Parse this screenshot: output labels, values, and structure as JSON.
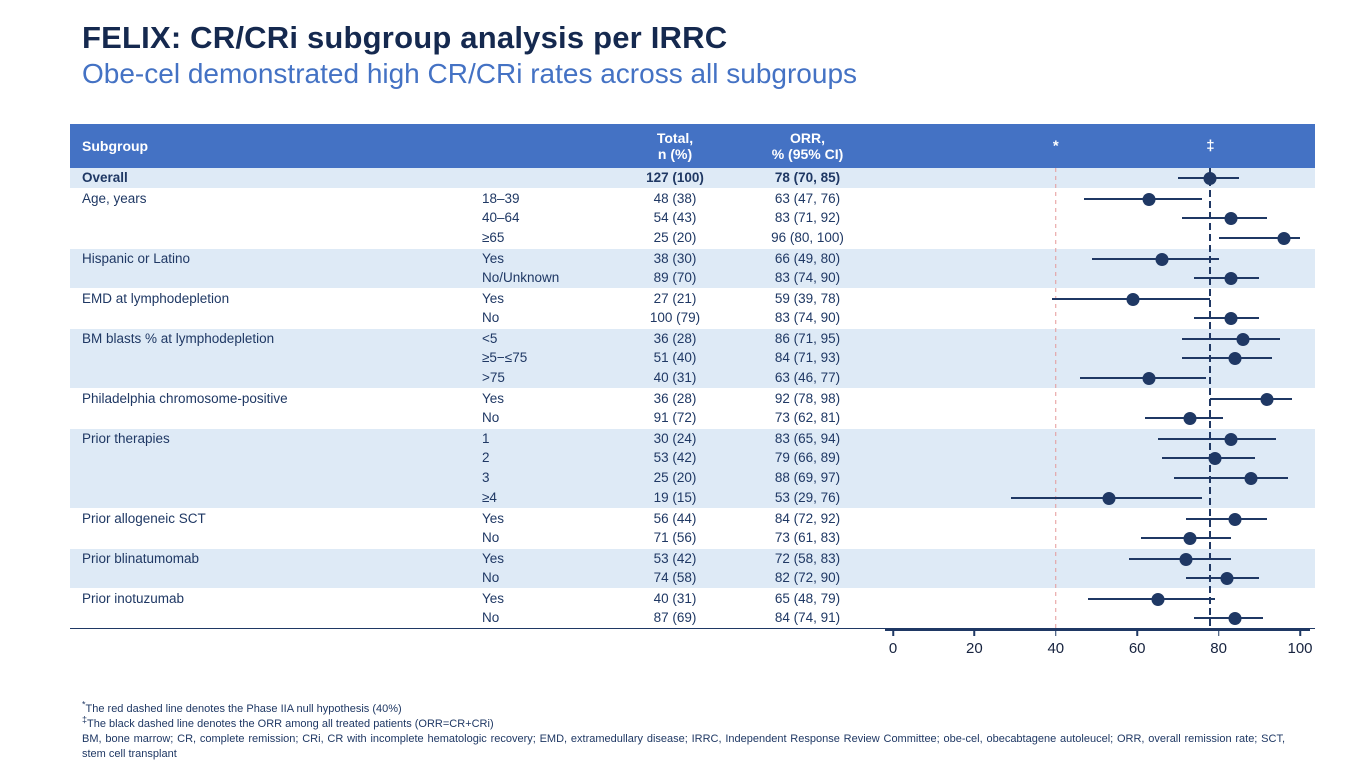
{
  "title": "FELIX: CR/CRi subgroup analysis per IRRC",
  "subtitle": "Obe-cel demonstrated high CR/CRi rates across all subgroups",
  "colors": {
    "header_bg": "#4472C4",
    "row_shade": "#DEEAF6",
    "ink": "#1F3864",
    "accent": "#4472C4",
    "marker": "#1F3864",
    "ref_red": "#E59898"
  },
  "table": {
    "headers": {
      "subgroup": "Subgroup",
      "total_line1": "Total,",
      "total_line2": "n (%)",
      "orr_line1": "ORR,",
      "orr_line2": "% (95% CI)",
      "star": "*",
      "dagger": "‡"
    }
  },
  "chart_data": {
    "type": "scatter",
    "variant": "forest-plot",
    "xlim": [
      0,
      100
    ],
    "x_ticks": [
      0,
      20,
      40,
      60,
      80,
      100
    ],
    "grid": false,
    "reference_lines": [
      {
        "value": 40,
        "style": "dashed",
        "color": "#E59898",
        "symbol": "*",
        "meaning": "Phase IIA null hypothesis (40%)"
      },
      {
        "value": 78,
        "style": "dashed",
        "color": "#1F3864",
        "symbol": "‡",
        "meaning": "ORR among all treated patients (ORR=CR+CRi)"
      }
    ],
    "groups": [
      {
        "label": "Overall",
        "bold": true,
        "rows": [
          {
            "category": "",
            "total": "127 (100)",
            "orr": "78 (70, 85)",
            "est": 78,
            "lo": 70,
            "hi": 85
          }
        ]
      },
      {
        "label": "Age, years",
        "rows": [
          {
            "category": "18–39",
            "total": "48 (38)",
            "orr": "63 (47, 76)",
            "est": 63,
            "lo": 47,
            "hi": 76
          },
          {
            "category": "40–64",
            "total": "54 (43)",
            "orr": "83 (71, 92)",
            "est": 83,
            "lo": 71,
            "hi": 92
          },
          {
            "category": "≥65",
            "total": "25 (20)",
            "orr": "96 (80, 100)",
            "est": 96,
            "lo": 80,
            "hi": 100
          }
        ]
      },
      {
        "label": "Hispanic or Latino",
        "rows": [
          {
            "category": "Yes",
            "total": "38 (30)",
            "orr": "66 (49, 80)",
            "est": 66,
            "lo": 49,
            "hi": 80
          },
          {
            "category": "No/Unknown",
            "total": "89 (70)",
            "orr": "83 (74, 90)",
            "est": 83,
            "lo": 74,
            "hi": 90
          }
        ]
      },
      {
        "label": "EMD at lymphodepletion",
        "rows": [
          {
            "category": "Yes",
            "total": "27 (21)",
            "orr": "59 (39, 78)",
            "est": 59,
            "lo": 39,
            "hi": 78
          },
          {
            "category": "No",
            "total": "100 (79)",
            "orr": "83 (74, 90)",
            "est": 83,
            "lo": 74,
            "hi": 90
          }
        ]
      },
      {
        "label": "BM blasts % at lymphodepletion",
        "rows": [
          {
            "category": "<5",
            "total": "36 (28)",
            "orr": "86 (71, 95)",
            "est": 86,
            "lo": 71,
            "hi": 95
          },
          {
            "category": "≥5−≤75",
            "total": "51 (40)",
            "orr": "84 (71, 93)",
            "est": 84,
            "lo": 71,
            "hi": 93
          },
          {
            "category": ">75",
            "total": "40 (31)",
            "orr": "63 (46, 77)",
            "est": 63,
            "lo": 46,
            "hi": 77
          }
        ]
      },
      {
        "label": "Philadelphia chromosome-positive",
        "rows": [
          {
            "category": "Yes",
            "total": "36 (28)",
            "orr": "92 (78, 98)",
            "est": 92,
            "lo": 78,
            "hi": 98
          },
          {
            "category": "No",
            "total": "91 (72)",
            "orr": "73 (62, 81)",
            "est": 73,
            "lo": 62,
            "hi": 81
          }
        ]
      },
      {
        "label": "Prior therapies",
        "rows": [
          {
            "category": "1",
            "total": "30 (24)",
            "orr": "83 (65, 94)",
            "est": 83,
            "lo": 65,
            "hi": 94
          },
          {
            "category": "2",
            "total": "53 (42)",
            "orr": "79 (66, 89)",
            "est": 79,
            "lo": 66,
            "hi": 89
          },
          {
            "category": "3",
            "total": "25 (20)",
            "orr": "88 (69, 97)",
            "est": 88,
            "lo": 69,
            "hi": 97
          },
          {
            "category": "≥4",
            "total": "19 (15)",
            "orr": "53 (29, 76)",
            "est": 53,
            "lo": 29,
            "hi": 76
          }
        ]
      },
      {
        "label": "Prior allogeneic SCT",
        "rows": [
          {
            "category": "Yes",
            "total": "56 (44)",
            "orr": "84 (72, 92)",
            "est": 84,
            "lo": 72,
            "hi": 92
          },
          {
            "category": "No",
            "total": "71 (56)",
            "orr": "73 (61, 83)",
            "est": 73,
            "lo": 61,
            "hi": 83
          }
        ]
      },
      {
        "label": "Prior blinatumomab",
        "rows": [
          {
            "category": "Yes",
            "total": "53 (42)",
            "orr": "72 (58, 83)",
            "est": 72,
            "lo": 58,
            "hi": 83
          },
          {
            "category": "No",
            "total": "74 (58)",
            "orr": "82 (72, 90)",
            "est": 82,
            "lo": 72,
            "hi": 90
          }
        ]
      },
      {
        "label": "Prior inotuzumab",
        "rows": [
          {
            "category": "Yes",
            "total": "40 (31)",
            "orr": "65 (48, 79)",
            "est": 65,
            "lo": 48,
            "hi": 79
          },
          {
            "category": "No",
            "total": "87 (69)",
            "orr": "84 (74, 91)",
            "est": 84,
            "lo": 74,
            "hi": 91
          }
        ]
      }
    ]
  },
  "footnotes": [
    {
      "marker": "*",
      "text": "The red dashed line denotes the Phase IIA null hypothesis (40%)"
    },
    {
      "marker": "‡",
      "text": "The black dashed line denotes the ORR among all treated patients (ORR=CR+CRi)"
    },
    {
      "marker": "",
      "text": "BM, bone marrow; CR, complete remission; CRi, CR with incomplete hematologic recovery; EMD, extramedullary disease; IRRC, Independent Response Review Committee; obe-cel, obecabtagene autoleucel; ORR, overall remission rate; SCT, stem cell transplant"
    }
  ]
}
